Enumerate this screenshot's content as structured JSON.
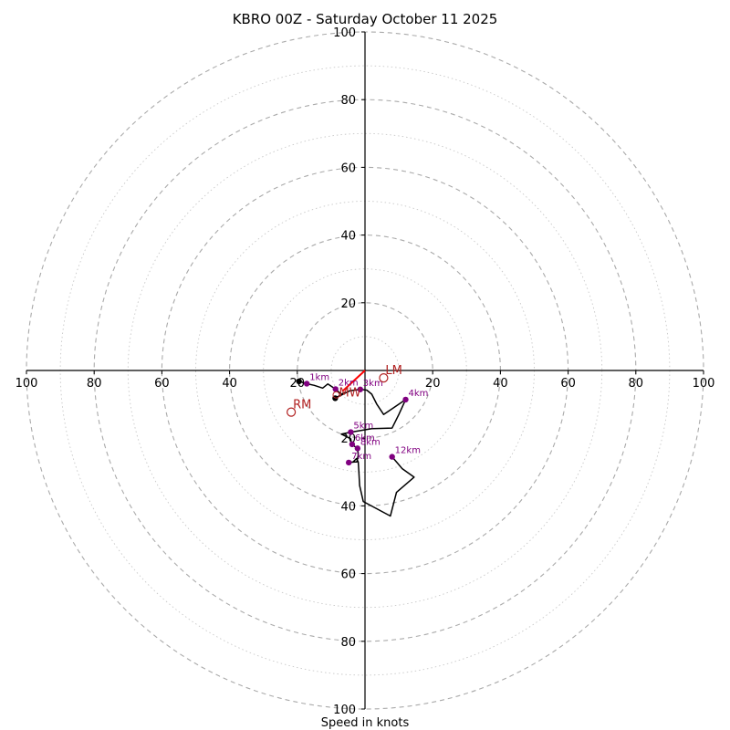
{
  "chart_data": {
    "type": "hodograph",
    "title": "KBRO 00Z - Saturday October 11 2025",
    "xlabel": "Speed in knots",
    "ylabel": "",
    "range_knots": 100,
    "ring_major_step": 20,
    "ring_minor_step": 10,
    "axis_tick_labels": [
      "100",
      "80",
      "60",
      "40",
      "20",
      "20",
      "40",
      "60",
      "80",
      "100"
    ],
    "vertical_tick_labels": [
      "100",
      "80",
      "60",
      "40",
      "20",
      "20",
      "40",
      "60",
      "80",
      "100"
    ],
    "grid": true,
    "colors": {
      "trace": "#000000",
      "height_marker": "#800080",
      "motion": "#b22222",
      "shear": "#ff0000",
      "major_ring": "#aaaaaa",
      "minor_ring": "#c8c8c8"
    },
    "trace": [
      {
        "u": -19.5,
        "v": -3.2
      },
      {
        "u": -17.2,
        "v": -3.9
      },
      {
        "u": -15.0,
        "v": -4.4
      },
      {
        "u": -12.5,
        "v": -5.2
      },
      {
        "u": -11.0,
        "v": -4.0
      },
      {
        "u": -8.7,
        "v": -5.5
      },
      {
        "u": -7.0,
        "v": -7.0
      },
      {
        "u": -6.0,
        "v": -6.5
      },
      {
        "u": -8.8,
        "v": -8.2
      },
      {
        "u": -4.5,
        "v": -6.0
      },
      {
        "u": -1.4,
        "v": -5.6
      },
      {
        "u": 0.5,
        "v": -5.8
      },
      {
        "u": 2.0,
        "v": -7.0
      },
      {
        "u": 3.5,
        "v": -10.0
      },
      {
        "u": 5.5,
        "v": -13.0
      },
      {
        "u": 8.5,
        "v": -11.0
      },
      {
        "u": 12.0,
        "v": -8.6
      },
      {
        "u": 10.0,
        "v": -13.0
      },
      {
        "u": 8.0,
        "v": -17.0
      },
      {
        "u": 2.0,
        "v": -17.2
      },
      {
        "u": -4.0,
        "v": -18.2
      },
      {
        "u": -7.0,
        "v": -18.8
      },
      {
        "u": -4.2,
        "v": -20.2
      },
      {
        "u": -4.0,
        "v": -21.8
      },
      {
        "u": -2.2,
        "v": -23.0
      },
      {
        "u": -2.0,
        "v": -25.0
      },
      {
        "u": -2.4,
        "v": -27.0
      },
      {
        "u": -3.0,
        "v": -27.0
      },
      {
        "u": -4.8,
        "v": -27.2
      },
      {
        "u": -3.5,
        "v": -27.0
      },
      {
        "u": -2.5,
        "v": -26.0
      },
      {
        "u": -2.0,
        "v": -27.0
      },
      {
        "u": -1.8,
        "v": -30.0
      },
      {
        "u": -1.6,
        "v": -34.0
      },
      {
        "u": -0.5,
        "v": -38.7
      },
      {
        "u": 7.5,
        "v": -43.0
      },
      {
        "u": 9.3,
        "v": -36.0
      },
      {
        "u": 14.5,
        "v": -31.5
      },
      {
        "u": 11.0,
        "v": -29.0
      },
      {
        "u": 8.0,
        "v": -25.5
      }
    ],
    "height_markers": [
      {
        "label": "1km",
        "u": -17.2,
        "v": -3.9
      },
      {
        "label": "2km",
        "u": -8.7,
        "v": -5.5
      },
      {
        "label": "3km",
        "u": -1.4,
        "v": -5.6
      },
      {
        "label": "4km",
        "u": 12.0,
        "v": -8.6
      },
      {
        "label": "5km",
        "u": -4.2,
        "v": -18.2
      },
      {
        "label": "6km",
        "u": -3.8,
        "v": -21.8
      },
      {
        "label": "8km",
        "u": -2.2,
        "v": -23.0
      },
      {
        "label": "7km",
        "u": -4.8,
        "v": -27.2
      },
      {
        "label": "12km",
        "u": 8.0,
        "v": -25.5
      }
    ],
    "unlabeled_markers": [
      {
        "u": -8.8,
        "v": -8.2
      },
      {
        "u": -19.5,
        "v": -3.2
      }
    ],
    "storm_motion": [
      {
        "label": "LM",
        "u": 5.5,
        "v": -2.2
      },
      {
        "label": "RM",
        "u": -21.8,
        "v": -12.3
      }
    ],
    "mean_wind": {
      "label": "MW",
      "u": -8.5,
      "v": -7.2
    },
    "shear_vector": {
      "from_u": 0,
      "from_v": 0,
      "to_u": -6.5,
      "to_v": -6.0
    }
  }
}
